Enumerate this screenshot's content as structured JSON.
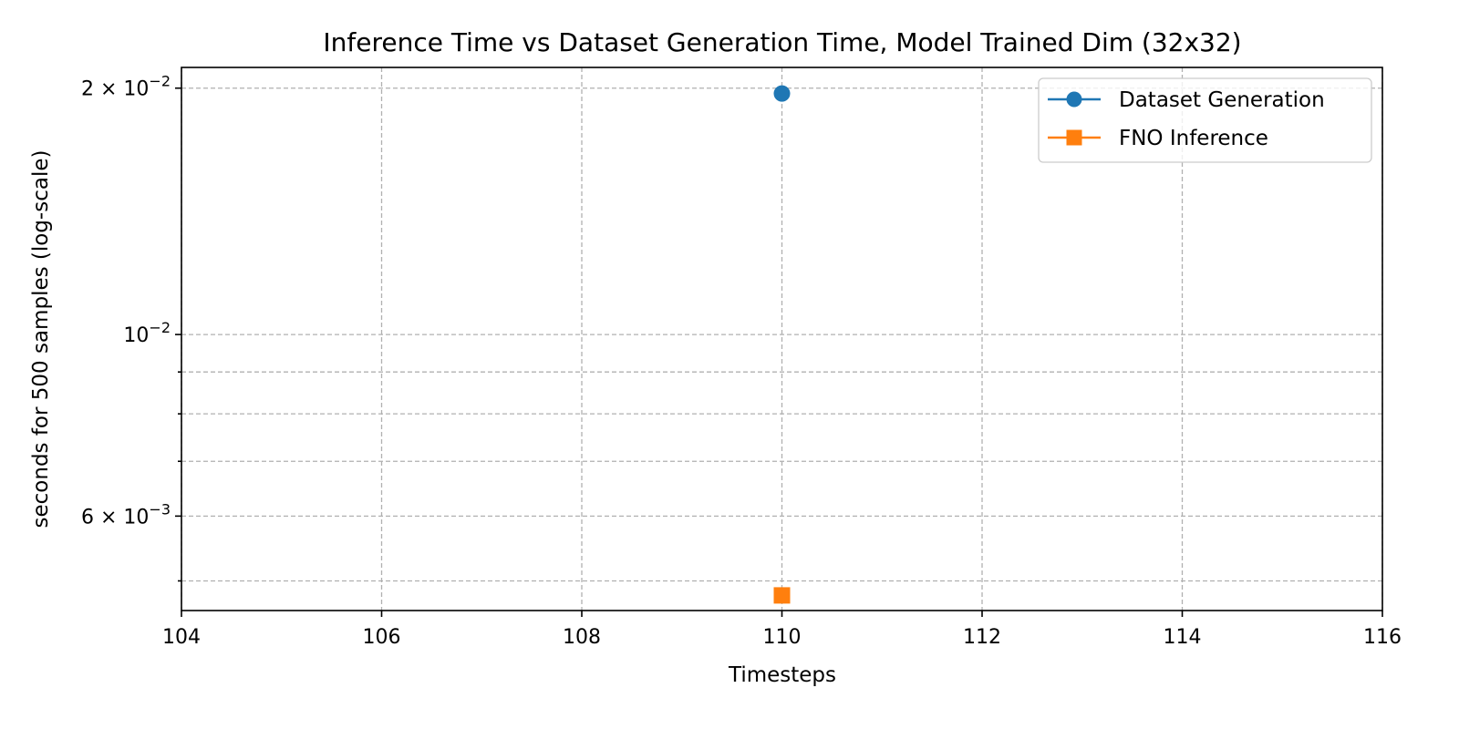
{
  "chart_data": {
    "type": "scatter",
    "title": "Inference Time vs Dataset Generation Time, Model Trained Dim (32x32)",
    "xlabel": "Timesteps",
    "ylabel": "seconds for 500 samples (log-scale)",
    "xlim": [
      104,
      116
    ],
    "ylim": [
      0.0046,
      0.0212
    ],
    "yscale": "log",
    "grid": true,
    "legend_position": "top-right",
    "x_ticks": [
      104,
      106,
      108,
      110,
      112,
      114,
      116
    ],
    "y_ticks": [
      {
        "value": 0.02,
        "mantissa": "2",
        "exponent": "−2"
      },
      {
        "value": 0.01,
        "mantissa": "",
        "exponent": "−2"
      },
      {
        "value": 0.006,
        "mantissa": "6",
        "exponent": "−3"
      }
    ],
    "y_minor_grid": [
      0.009,
      0.008,
      0.007,
      0.005
    ],
    "series": [
      {
        "name": "Dataset Generation",
        "color": "#1f77b4",
        "marker": "circle",
        "points": [
          {
            "x": 110,
            "y": 0.0197
          }
        ]
      },
      {
        "name": "FNO Inference",
        "color": "#ff7f0e",
        "marker": "square",
        "points": [
          {
            "x": 110,
            "y": 0.0048
          }
        ]
      }
    ]
  }
}
